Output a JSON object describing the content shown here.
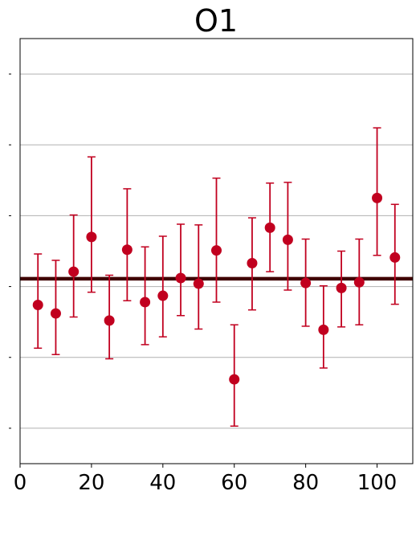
{
  "chart_data": {
    "type": "scatter",
    "title": "O1",
    "xlabel": "",
    "ylabel": "",
    "xlim": [
      0,
      110
    ],
    "ylim": [
      -0.25,
      0.35
    ],
    "x_ticks": [
      0,
      20,
      40,
      60,
      80,
      100
    ],
    "x_tick_labels": [
      "0",
      "20",
      "40",
      "60",
      "80",
      "100"
    ],
    "y_ticks": [
      -0.2,
      -0.1,
      0.0,
      0.1,
      0.2,
      0.3
    ],
    "y_tick_labels_visible": false,
    "grid": "horizontal",
    "legend": "none",
    "reference_line": {
      "y": 0.011,
      "color": "#3f0000"
    },
    "series": [
      {
        "color": "#c1001f",
        "errorbars": true,
        "points": [
          {
            "x": 5,
            "y": -0.026,
            "lower": -0.087,
            "upper": 0.046
          },
          {
            "x": 10,
            "y": -0.038,
            "lower": -0.096,
            "upper": 0.037
          },
          {
            "x": 15,
            "y": 0.021,
            "lower": -0.043,
            "upper": 0.101
          },
          {
            "x": 20,
            "y": 0.07,
            "lower": -0.008,
            "upper": 0.183
          },
          {
            "x": 25,
            "y": -0.048,
            "lower": -0.102,
            "upper": 0.016
          },
          {
            "x": 30,
            "y": 0.052,
            "lower": -0.02,
            "upper": 0.138
          },
          {
            "x": 35,
            "y": -0.022,
            "lower": -0.082,
            "upper": 0.056
          },
          {
            "x": 40,
            "y": -0.013,
            "lower": -0.071,
            "upper": 0.071
          },
          {
            "x": 45,
            "y": 0.012,
            "lower": -0.041,
            "upper": 0.088
          },
          {
            "x": 50,
            "y": 0.004,
            "lower": -0.06,
            "upper": 0.087
          },
          {
            "x": 55,
            "y": 0.051,
            "lower": -0.022,
            "upper": 0.153
          },
          {
            "x": 60,
            "y": -0.131,
            "lower": -0.197,
            "upper": -0.054
          },
          {
            "x": 65,
            "y": 0.033,
            "lower": -0.033,
            "upper": 0.097
          },
          {
            "x": 70,
            "y": 0.083,
            "lower": 0.021,
            "upper": 0.146
          },
          {
            "x": 75,
            "y": 0.066,
            "lower": -0.005,
            "upper": 0.147
          },
          {
            "x": 80,
            "y": 0.005,
            "lower": -0.056,
            "upper": 0.067
          },
          {
            "x": 85,
            "y": -0.061,
            "lower": -0.115,
            "upper": 0.001
          },
          {
            "x": 90,
            "y": -0.002,
            "lower": -0.057,
            "upper": 0.05
          },
          {
            "x": 95,
            "y": 0.006,
            "lower": -0.054,
            "upper": 0.067
          },
          {
            "x": 100,
            "y": 0.125,
            "lower": 0.044,
            "upper": 0.224
          },
          {
            "x": 105,
            "y": 0.041,
            "lower": -0.025,
            "upper": 0.116
          }
        ]
      }
    ]
  }
}
